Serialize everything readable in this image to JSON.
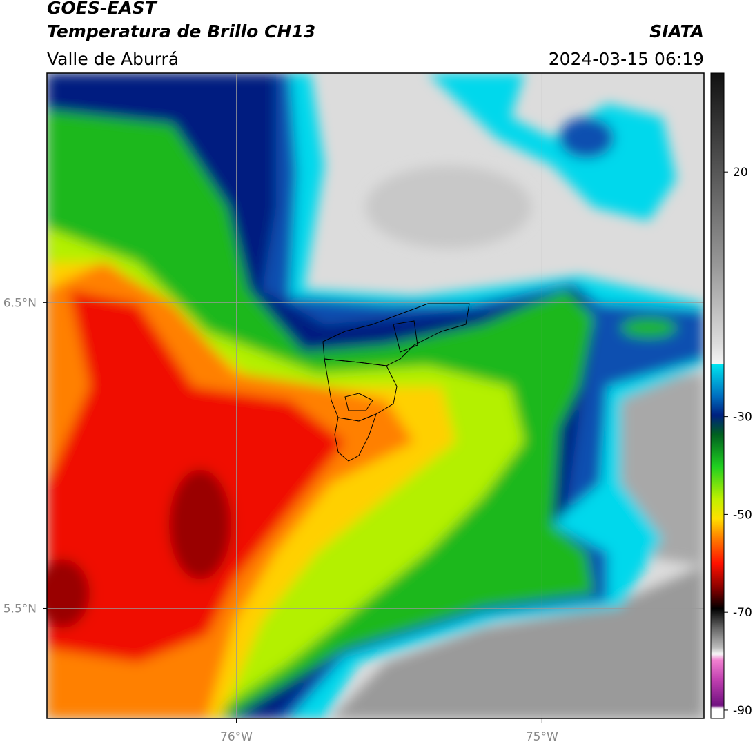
{
  "header": {
    "title": "GOES-EAST",
    "subtitle": "Temperatura de Brillo CH13",
    "region": "Valle de Aburrá",
    "source": "SIATA",
    "datetime": "2024-03-15 06:19"
  },
  "map": {
    "xlim": [
      -76.62,
      -74.47
    ],
    "ylim": [
      5.14,
      7.25
    ],
    "xticks": [
      {
        "value": -76,
        "label": "76°W"
      },
      {
        "value": -75,
        "label": "75°W"
      }
    ],
    "yticks": [
      {
        "value": 6.5,
        "label": "6.5°N"
      },
      {
        "value": 5.5,
        "label": "5.5°N"
      }
    ]
  },
  "colorbar": {
    "clim": [
      -91.7,
      40.2
    ],
    "ticks": [
      20,
      -30,
      -50,
      -70,
      -90
    ]
  }
}
